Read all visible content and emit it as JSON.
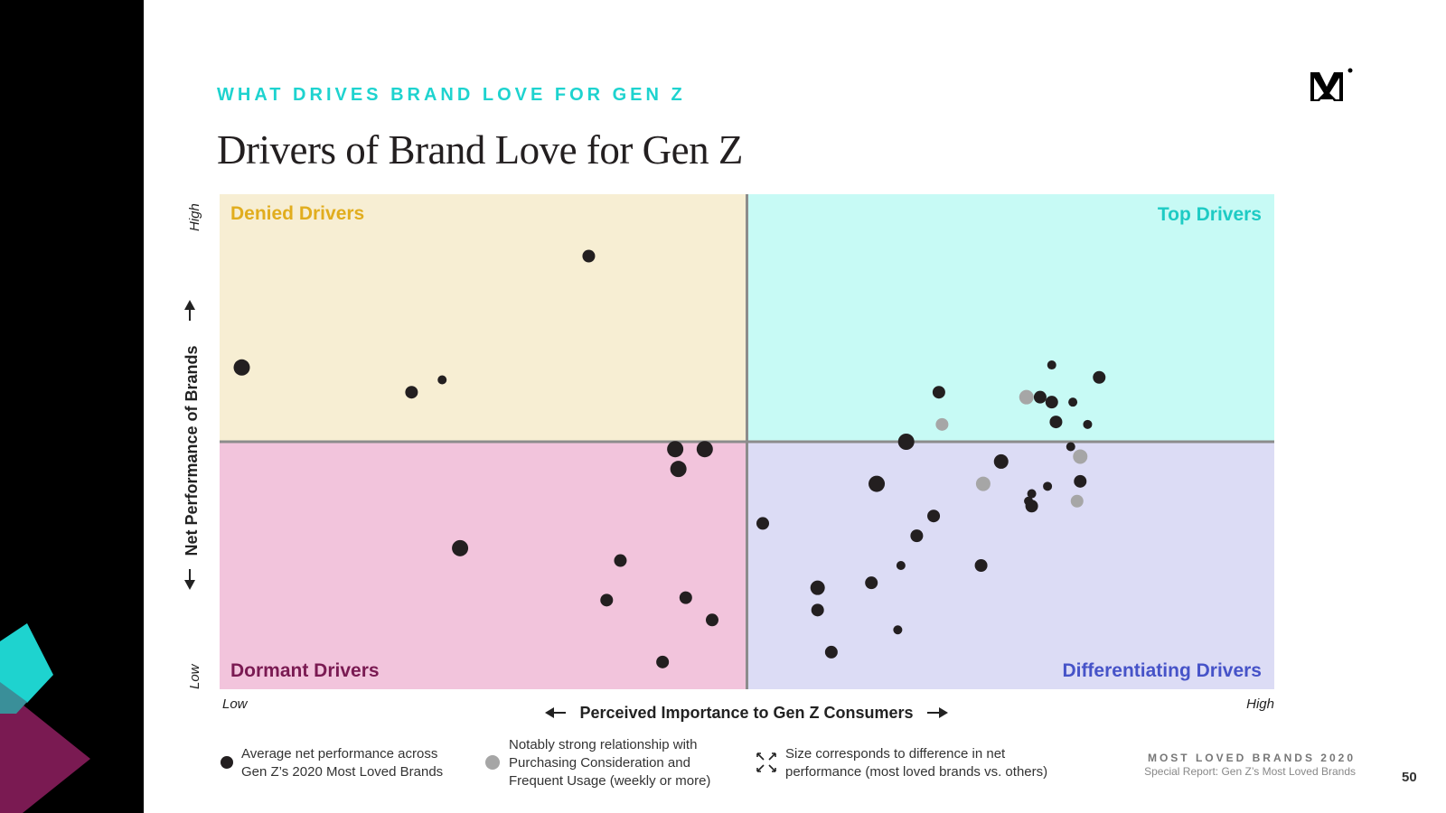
{
  "header": {
    "eyebrow": "WHAT DRIVES BRAND LOVE FOR GEN Z",
    "title": "Drivers of Brand Love for Gen Z"
  },
  "chart_data": {
    "type": "scatter",
    "quadrants": {
      "top_left": {
        "label": "Denied Drivers",
        "color": "#e1ad1e",
        "fill": "#f7eed3"
      },
      "top_right": {
        "label": "Top Drivers",
        "color": "#1ecbc4",
        "fill": "#c7faf5"
      },
      "bottom_left": {
        "label": "Dormant Drivers",
        "color": "#7a1a52",
        "fill": "#f2c4dc"
      },
      "bottom_right": {
        "label": "Differentiating Drivers",
        "color": "#4653c8",
        "fill": "#dcdcf5"
      }
    },
    "xlabel": "Perceived Importance to Gen Z Consumers",
    "ylabel": "Net Performance of Brands",
    "x_low": "Low",
    "x_high": "High",
    "y_low": "Low",
    "y_high": "High",
    "xlim": [
      0,
      100
    ],
    "ylim": [
      0,
      100
    ],
    "series_colors": {
      "average": "#231f20",
      "strong": "#a6a6a6"
    },
    "points": [
      {
        "x": 35.0,
        "y": 87.5,
        "size": 7,
        "type": "average"
      },
      {
        "x": 2.1,
        "y": 65.0,
        "size": 9,
        "type": "average"
      },
      {
        "x": 18.2,
        "y": 60.0,
        "size": 7,
        "type": "average"
      },
      {
        "x": 21.1,
        "y": 62.5,
        "size": 5,
        "type": "average"
      },
      {
        "x": 46.0,
        "y": 48.5,
        "size": 9,
        "type": "average"
      },
      {
        "x": 43.2,
        "y": 48.5,
        "size": 9,
        "type": "average"
      },
      {
        "x": 43.5,
        "y": 44.5,
        "size": 9,
        "type": "average"
      },
      {
        "x": 22.8,
        "y": 28.5,
        "size": 9,
        "type": "average"
      },
      {
        "x": 38.0,
        "y": 26.0,
        "size": 7,
        "type": "average"
      },
      {
        "x": 36.7,
        "y": 18.0,
        "size": 7,
        "type": "average"
      },
      {
        "x": 44.2,
        "y": 18.5,
        "size": 7,
        "type": "average"
      },
      {
        "x": 46.7,
        "y": 14.0,
        "size": 7,
        "type": "average"
      },
      {
        "x": 42.0,
        "y": 5.5,
        "size": 7,
        "type": "average"
      },
      {
        "x": 68.2,
        "y": 60.0,
        "size": 7,
        "type": "average"
      },
      {
        "x": 68.5,
        "y": 53.5,
        "size": 7,
        "type": "strong"
      },
      {
        "x": 76.5,
        "y": 59.0,
        "size": 8,
        "type": "strong"
      },
      {
        "x": 77.8,
        "y": 59.0,
        "size": 7,
        "type": "average"
      },
      {
        "x": 78.9,
        "y": 58.0,
        "size": 7,
        "type": "average"
      },
      {
        "x": 78.9,
        "y": 65.5,
        "size": 5,
        "type": "average"
      },
      {
        "x": 80.9,
        "y": 58.0,
        "size": 5,
        "type": "average"
      },
      {
        "x": 83.4,
        "y": 63.0,
        "size": 7,
        "type": "average"
      },
      {
        "x": 79.3,
        "y": 54.0,
        "size": 7,
        "type": "average"
      },
      {
        "x": 82.3,
        "y": 53.5,
        "size": 5,
        "type": "average"
      },
      {
        "x": 65.1,
        "y": 50.0,
        "size": 9,
        "type": "average"
      },
      {
        "x": 80.7,
        "y": 49.0,
        "size": 5,
        "type": "average"
      },
      {
        "x": 81.6,
        "y": 47.0,
        "size": 8,
        "type": "strong"
      },
      {
        "x": 74.1,
        "y": 46.0,
        "size": 8,
        "type": "average"
      },
      {
        "x": 62.3,
        "y": 41.5,
        "size": 9,
        "type": "average"
      },
      {
        "x": 72.4,
        "y": 41.5,
        "size": 8,
        "type": "strong"
      },
      {
        "x": 81.6,
        "y": 42.0,
        "size": 7,
        "type": "average"
      },
      {
        "x": 78.5,
        "y": 41.0,
        "size": 5,
        "type": "average"
      },
      {
        "x": 77.0,
        "y": 39.5,
        "size": 5,
        "type": "average"
      },
      {
        "x": 76.7,
        "y": 38.0,
        "size": 5,
        "type": "average"
      },
      {
        "x": 77.0,
        "y": 37.0,
        "size": 7,
        "type": "average"
      },
      {
        "x": 81.3,
        "y": 38.0,
        "size": 7,
        "type": "strong"
      },
      {
        "x": 67.7,
        "y": 35.0,
        "size": 7,
        "type": "average"
      },
      {
        "x": 51.5,
        "y": 33.5,
        "size": 7,
        "type": "average"
      },
      {
        "x": 66.1,
        "y": 31.0,
        "size": 7,
        "type": "average"
      },
      {
        "x": 64.6,
        "y": 25.0,
        "size": 5,
        "type": "average"
      },
      {
        "x": 72.2,
        "y": 25.0,
        "size": 7,
        "type": "average"
      },
      {
        "x": 56.7,
        "y": 20.5,
        "size": 8,
        "type": "average"
      },
      {
        "x": 61.8,
        "y": 21.5,
        "size": 7,
        "type": "average"
      },
      {
        "x": 56.7,
        "y": 16.0,
        "size": 7,
        "type": "average"
      },
      {
        "x": 64.3,
        "y": 12.0,
        "size": 5,
        "type": "average"
      },
      {
        "x": 58.0,
        "y": 7.5,
        "size": 7,
        "type": "average"
      }
    ]
  },
  "legend": {
    "average": [
      "Average net performance across",
      "Gen Z’s 2020 Most Loved Brands"
    ],
    "strong": [
      "Notably strong relationship with",
      "Purchasing Consideration and",
      "Frequent Usage (weekly or more)"
    ],
    "size": [
      "Size corresponds to difference in net",
      "performance (most loved brands vs. others)"
    ]
  },
  "footer": {
    "title": "MOST LOVED BRANDS 2020",
    "subtitle": "Special Report: Gen Z’s Most Loved Brands",
    "page": "50"
  }
}
